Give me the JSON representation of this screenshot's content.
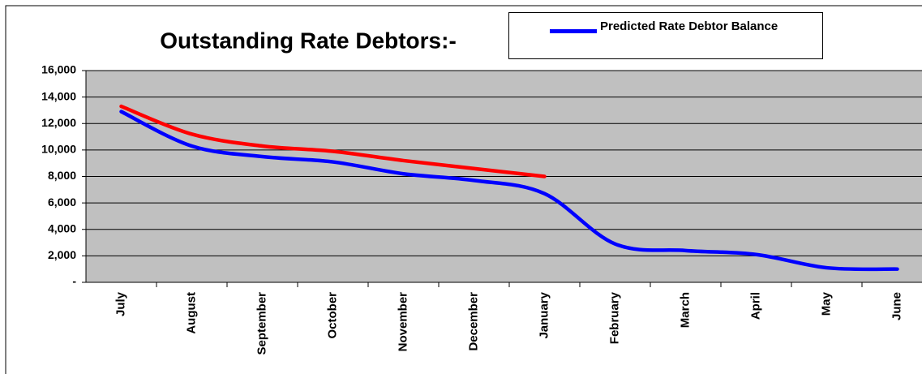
{
  "chart_data": {
    "type": "line",
    "title": "Outstanding Rate Debtors:-",
    "categories": [
      "July",
      "August",
      "September",
      "October",
      "November",
      "December",
      "January",
      "February",
      "March",
      "April",
      "May",
      "June"
    ],
    "series": [
      {
        "name": "Predicted Rate Debtor Balance",
        "color": "#0000ff",
        "values": [
          12900,
          10300,
          9500,
          9100,
          8200,
          7700,
          6700,
          2900,
          2400,
          2100,
          1100,
          1000
        ]
      },
      {
        "color": "#ff0000",
        "values": [
          13300,
          11200,
          10300,
          9900,
          9200,
          8600,
          8000,
          null,
          null,
          null,
          null,
          null
        ]
      }
    ],
    "ylim": [
      0,
      16000
    ],
    "yticks": [
      {
        "value": 0,
        "label": "-"
      },
      {
        "value": 2000,
        "label": "2,000"
      },
      {
        "value": 4000,
        "label": "4,000"
      },
      {
        "value": 6000,
        "label": "6,000"
      },
      {
        "value": 8000,
        "label": "8,000"
      },
      {
        "value": 10000,
        "label": "10,000"
      },
      {
        "value": 12000,
        "label": "12,000"
      },
      {
        "value": 14000,
        "label": "14,000"
      },
      {
        "value": 16000,
        "label": "16,000"
      }
    ],
    "grid": true,
    "plot_background": "#c0c0c0"
  }
}
